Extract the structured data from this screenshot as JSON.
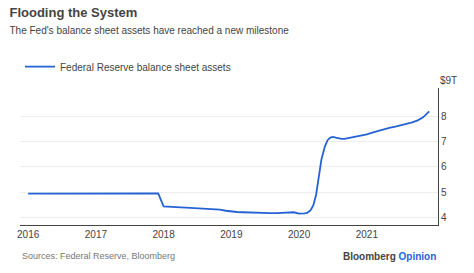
{
  "chart_data": {
    "type": "line",
    "title": "Flooding the System",
    "subtitle": "The Fed's balance sheet assets have reached a new milestone",
    "x": [
      2016.0,
      2016.08,
      2016.17,
      2016.25,
      2016.33,
      2016.42,
      2016.5,
      2016.58,
      2016.67,
      2016.75,
      2016.83,
      2016.92,
      2017.0,
      2017.08,
      2017.17,
      2017.25,
      2017.33,
      2017.42,
      2017.5,
      2017.58,
      2017.67,
      2017.75,
      2017.83,
      2017.92,
      2018.0,
      2018.08,
      2018.17,
      2018.25,
      2018.33,
      2018.42,
      2018.5,
      2018.58,
      2018.67,
      2018.75,
      2018.83,
      2018.92,
      2019.0,
      2019.08,
      2019.17,
      2019.25,
      2019.33,
      2019.42,
      2019.5,
      2019.58,
      2019.67,
      2019.75,
      2019.83,
      2019.92,
      2020.0,
      2020.04,
      2020.08,
      2020.12,
      2020.17,
      2020.21,
      2020.25,
      2020.29,
      2020.33,
      2020.38,
      2020.42,
      2020.46,
      2020.5,
      2020.54,
      2020.58,
      2020.63,
      2020.67,
      2020.71,
      2020.75,
      2020.79,
      2020.83,
      2020.88,
      2020.92,
      2020.96,
      2021.0,
      2021.08,
      2021.17,
      2021.25,
      2021.33,
      2021.42,
      2021.5,
      2021.58,
      2021.67,
      2021.75,
      2021.83,
      2021.92
    ],
    "series": [
      {
        "name": "Federal Reserve balance sheet assets",
        "color": "#2563d4",
        "values": [
          4.95,
          4.95,
          4.96,
          4.96,
          4.97,
          4.96,
          4.96,
          4.96,
          4.97,
          4.96,
          4.97,
          4.96,
          4.96,
          4.95,
          4.95,
          4.95,
          4.96,
          4.96,
          4.95,
          4.95,
          4.96,
          4.96,
          4.96,
          4.96,
          4.45,
          4.43,
          4.42,
          4.41,
          4.4,
          4.39,
          4.38,
          4.37,
          4.36,
          4.34,
          4.32,
          4.28,
          4.25,
          4.23,
          4.22,
          4.21,
          4.21,
          4.2,
          4.2,
          4.19,
          4.19,
          4.2,
          4.21,
          4.22,
          4.17,
          4.17,
          4.18,
          4.2,
          4.3,
          4.5,
          4.9,
          5.6,
          6.3,
          6.8,
          7.05,
          7.15,
          7.18,
          7.15,
          7.12,
          7.1,
          7.1,
          7.12,
          7.13,
          7.15,
          7.18,
          7.2,
          7.22,
          7.25,
          7.28,
          7.35,
          7.42,
          7.48,
          7.53,
          7.58,
          7.63,
          7.68,
          7.75,
          7.83,
          7.95,
          8.18
        ]
      }
    ],
    "xlim": [
      2015.88,
      2022.05
    ],
    "xticks": [
      2016,
      2017,
      2018,
      2019,
      2020,
      2021
    ],
    "ylim": [
      3.72,
      9.1
    ],
    "yticks": [
      4,
      5,
      6,
      7,
      8
    ],
    "grid": true,
    "legend": "top left",
    "annotations": [
      "$9T",
      "Sources: Federal Reserve, Bloomberg",
      "Bloomberg",
      "Opinion"
    ]
  }
}
